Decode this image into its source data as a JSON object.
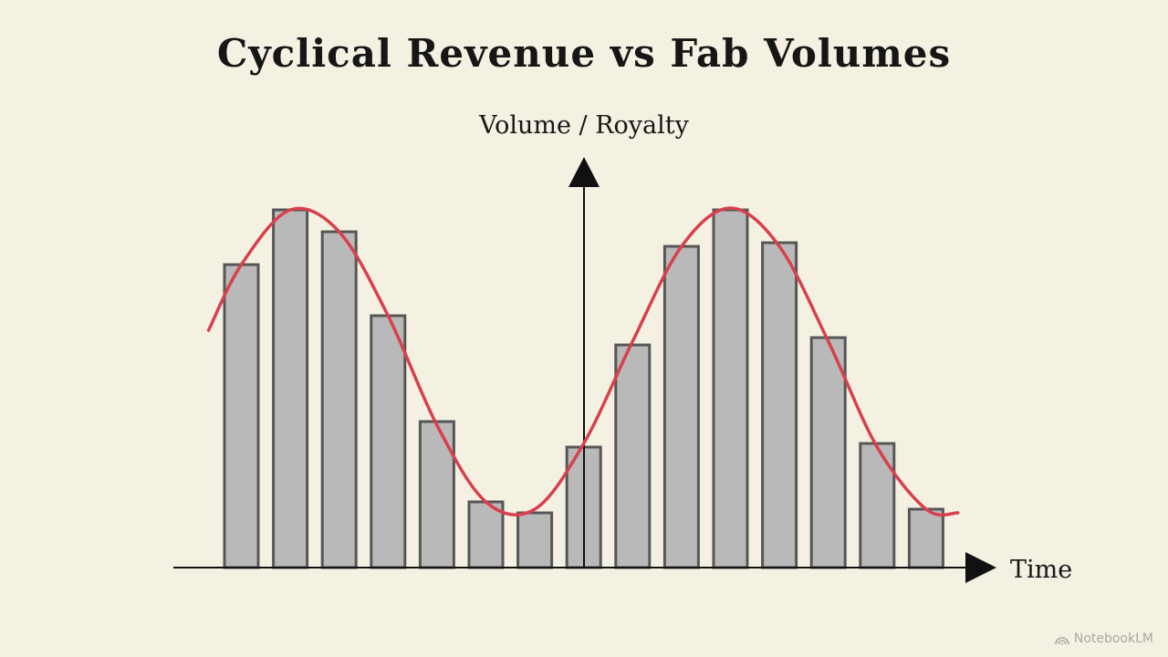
{
  "chart_data": {
    "type": "bar",
    "title": "Cyclical Revenue vs Fab Volumes",
    "ylabel": "Volume / Royalty",
    "xlabel": "Time",
    "ylim": [
      0,
      100
    ],
    "grid": false,
    "legend": "none",
    "axis_ticks": false,
    "series": [
      {
        "type": "bar",
        "values": [
          83,
          98,
          92,
          69,
          40,
          18,
          15,
          33,
          61,
          88,
          98,
          89,
          63,
          34,
          16
        ],
        "color": "#b9b9b9",
        "stroke": "#565656"
      },
      {
        "type": "line",
        "x": [
          -0.67,
          0,
          1,
          2,
          3,
          4,
          5,
          6,
          7,
          8,
          9,
          10,
          11,
          12,
          13,
          14,
          14.65
        ],
        "values": [
          65,
          83,
          98,
          92,
          69,
          39,
          18,
          16,
          34,
          62,
          88,
          98.5,
          88,
          62,
          33,
          16,
          15
        ],
        "color": "#d8404c"
      }
    ]
  },
  "watermark": "NotebookLM",
  "colors": {
    "background": "#f4f1e3",
    "axis": "#111111"
  }
}
